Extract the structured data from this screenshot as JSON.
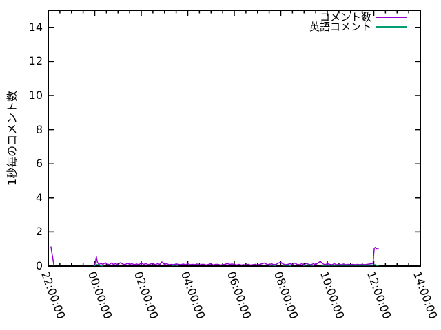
{
  "chart_data": {
    "type": "line",
    "title": "",
    "ylabel": "1秒毎のコメント数",
    "xlabel": "",
    "ylim": [
      0,
      15
    ],
    "y_ticks": [
      0,
      2,
      4,
      6,
      8,
      10,
      12,
      14
    ],
    "x_axis": {
      "tick_minutes": [
        0,
        120,
        240,
        360,
        480,
        600,
        720,
        840,
        960
      ],
      "tick_labels": [
        "22:00:00",
        "00:00:00",
        "02:00:00",
        "04:00:00",
        "06:00:00",
        "08:00:00",
        "10:00:00",
        "12:00:00",
        "14:00:00"
      ],
      "minor_tick_interval_minutes": 30,
      "range_minutes": [
        0,
        960
      ],
      "label_rotation_deg": 70
    },
    "grid": false,
    "legend_position": "top-right-inside",
    "axis_color": "#000000",
    "background_color": "#ffffff",
    "series": [
      {
        "name": "コメント数",
        "color": "#9400d3",
        "points": [
          [
            7,
            1.15
          ],
          [
            10,
            0.7
          ],
          [
            13,
            0.3
          ],
          [
            15,
            0
          ],
          null,
          [
            117,
            0.02
          ],
          [
            121,
            0.15
          ],
          [
            124,
            0.55
          ],
          [
            127,
            0.22
          ],
          [
            131,
            0.1
          ],
          [
            136,
            0.16
          ],
          [
            141,
            0.1
          ],
          [
            147,
            0.2
          ],
          [
            152,
            0.12
          ],
          [
            158,
            0.08
          ],
          [
            163,
            0.18
          ],
          [
            168,
            0.1
          ],
          [
            174,
            0.14
          ],
          [
            180,
            0.08
          ],
          [
            186,
            0.2
          ],
          [
            192,
            0.12
          ],
          [
            198,
            0.08
          ],
          [
            204,
            0.16
          ],
          [
            210,
            0.1
          ],
          [
            216,
            0.14
          ],
          [
            222,
            0.08
          ],
          [
            228,
            0.12
          ],
          [
            234,
            0.08
          ],
          [
            240,
            0.18
          ],
          [
            246,
            0.1
          ],
          [
            252,
            0.14
          ],
          [
            258,
            0.08
          ],
          [
            264,
            0.12
          ],
          [
            270,
            0.16
          ],
          [
            276,
            0.08
          ],
          [
            282,
            0.14
          ],
          [
            288,
            0.1
          ],
          [
            293,
            0.24
          ],
          [
            300,
            0.1
          ],
          [
            306,
            0.14
          ],
          [
            312,
            0.08
          ],
          [
            318,
            0.1
          ],
          [
            324,
            0.08
          ],
          [
            330,
            0.12
          ],
          [
            336,
            0.1
          ],
          [
            342,
            0.08
          ],
          [
            348,
            0.12
          ],
          [
            354,
            0.08
          ],
          [
            360,
            0.14
          ],
          [
            366,
            0.08
          ],
          [
            372,
            0.1
          ],
          [
            378,
            0.08
          ],
          [
            384,
            0.12
          ],
          [
            390,
            0.06
          ],
          [
            396,
            0.1
          ],
          [
            402,
            0.1
          ],
          [
            408,
            0.06
          ],
          [
            414,
            0.1
          ],
          [
            420,
            0.14
          ],
          [
            426,
            0.06
          ],
          [
            432,
            0.1
          ],
          [
            438,
            0.1
          ],
          [
            444,
            0.06
          ],
          [
            450,
            0.08
          ],
          [
            456,
            0.1
          ],
          [
            462,
            0.15
          ],
          [
            468,
            0.1
          ],
          [
            474,
            0.12
          ],
          [
            480,
            0.1
          ],
          [
            486,
            0.06
          ],
          [
            492,
            0.1
          ],
          [
            498,
            0.06
          ],
          [
            504,
            0.08
          ],
          [
            510,
            0.06
          ],
          [
            516,
            0.1
          ],
          [
            522,
            0.06
          ],
          [
            528,
            0.08
          ],
          [
            534,
            0.1
          ],
          [
            540,
            0.06
          ],
          [
            546,
            0.1
          ],
          [
            552,
            0.14
          ],
          [
            558,
            0.18
          ],
          [
            564,
            0.1
          ],
          [
            570,
            0.08
          ],
          [
            576,
            0.14
          ],
          [
            582,
            0.08
          ],
          [
            588,
            0.1
          ],
          [
            594,
            0.18
          ],
          [
            600,
            0.22
          ],
          [
            606,
            0.12
          ],
          [
            612,
            0.08
          ],
          [
            618,
            0.1
          ],
          [
            624,
            0.14
          ],
          [
            630,
            0.08
          ],
          [
            636,
            0.18
          ],
          [
            642,
            0.1
          ],
          [
            648,
            0.08
          ],
          [
            654,
            0.14
          ],
          [
            660,
            0.08
          ],
          [
            666,
            0.16
          ],
          [
            672,
            0.1
          ],
          [
            678,
            0.08
          ],
          [
            684,
            0.14
          ],
          [
            690,
            0.08
          ],
          [
            696,
            0.18
          ],
          [
            702,
            0.28
          ],
          [
            708,
            0.14
          ],
          [
            714,
            0.08
          ],
          [
            720,
            0.14
          ],
          [
            726,
            0.1
          ],
          [
            732,
            0.08
          ],
          [
            738,
            0.14
          ],
          [
            744,
            0.08
          ],
          [
            750,
            0.1
          ],
          [
            756,
            0.08
          ],
          [
            762,
            0.12
          ],
          [
            768,
            0.08
          ],
          [
            774,
            0.1
          ],
          [
            780,
            0.08
          ],
          [
            786,
            0.1
          ],
          [
            792,
            0.08
          ],
          [
            798,
            0.1
          ],
          [
            804,
            0.08
          ],
          [
            810,
            0.1
          ],
          [
            816,
            0.08
          ],
          [
            822,
            0.1
          ],
          [
            828,
            0.12
          ],
          [
            834,
            0.14
          ],
          [
            838,
            0.16
          ],
          [
            841,
            1.05
          ],
          [
            844,
            1.1
          ],
          [
            846,
            1.02
          ],
          [
            849,
            1.06
          ],
          [
            852,
            1.0
          ]
        ]
      },
      {
        "name": "英語コメント",
        "color": "#009e73",
        "points": [
          [
            119,
            0.02
          ],
          [
            124,
            0.09
          ],
          [
            130,
            0.07
          ],
          [
            136,
            0.03
          ],
          [
            140,
            0.01
          ],
          null,
          [
            318,
            0.02
          ],
          [
            324,
            0.06
          ],
          [
            330,
            0.05
          ],
          [
            336,
            0.02
          ],
          null,
          [
            569,
            0.03
          ],
          [
            576,
            0.06
          ],
          [
            583,
            0.04
          ],
          [
            587,
            0.02
          ],
          null,
          [
            605,
            0.03
          ],
          [
            612,
            0.06
          ],
          [
            620,
            0.05
          ],
          [
            626,
            0.02
          ],
          null,
          [
            658,
            0.03
          ],
          [
            666,
            0.06
          ],
          [
            675,
            0.06
          ],
          [
            686,
            0.03
          ],
          null,
          [
            705,
            0.04
          ],
          [
            720,
            0.05
          ],
          [
            740,
            0.05
          ],
          [
            760,
            0.06
          ],
          [
            780,
            0.05
          ],
          [
            800,
            0.06
          ],
          [
            820,
            0.05
          ],
          [
            835,
            0.06
          ],
          [
            843,
            0.08
          ],
          [
            848,
            0.04
          ],
          [
            852,
            0.01
          ]
        ]
      }
    ]
  }
}
